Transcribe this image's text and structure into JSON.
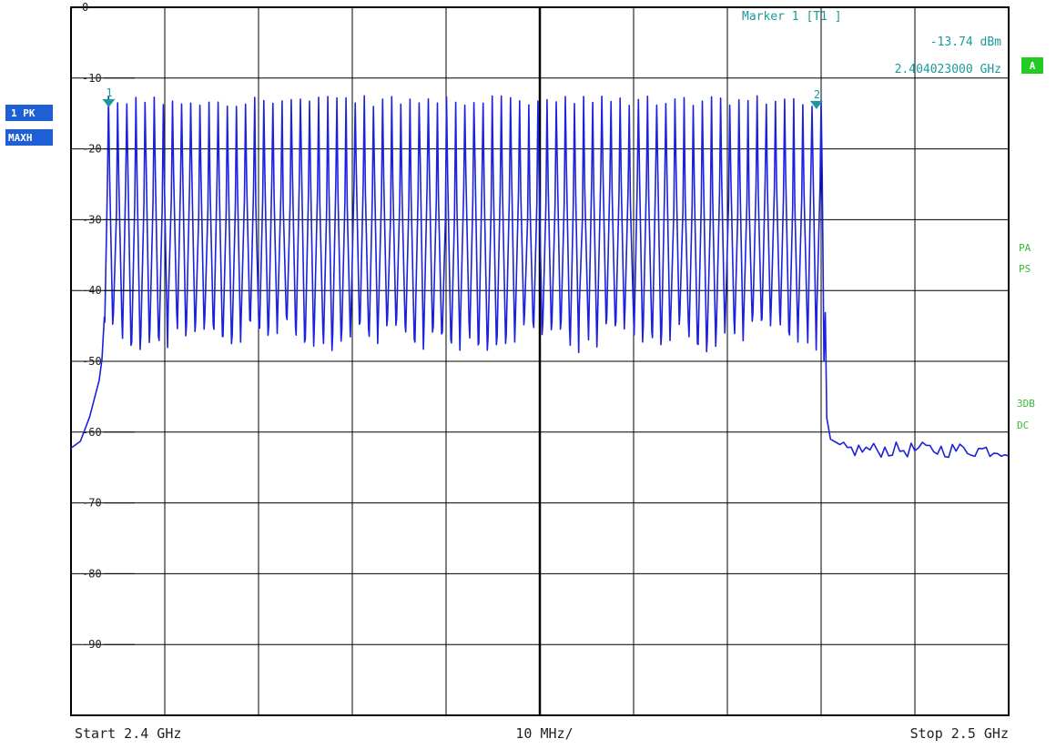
{
  "chart_data": {
    "type": "line",
    "title": "",
    "xlabel": "",
    "ylabel": "",
    "xlim": [
      2.4,
      2.5
    ],
    "ylim": [
      -100,
      0
    ],
    "x_unit": "GHz",
    "y_unit": "dBm",
    "grid": true,
    "y_ticks": [
      "0",
      "-10",
      "-20",
      "-30",
      "-40",
      "-50",
      "-60",
      "-70",
      "-80",
      "-90"
    ],
    "channels": {
      "count": 79,
      "first_center_ghz": 2.402,
      "spacing_ghz": 0.001,
      "peak_dbm": -13.7,
      "trough_dbm": -45
    },
    "noise_floor_dbm": -62.5,
    "series": [
      {
        "points": [
          [
            2.4,
            -62.5
          ],
          [
            2.401,
            -61
          ],
          [
            2.402,
            -58
          ],
          [
            2.4025,
            -56
          ],
          [
            2.403,
            -53
          ],
          [
            2.4033,
            -50
          ],
          [
            2.4036,
            -44
          ],
          [
            2.404,
            -13.7
          ],
          [
            2.4795,
            -13.8
          ],
          [
            2.48,
            -35
          ],
          [
            2.4803,
            -50
          ],
          [
            2.4806,
            -58
          ],
          [
            2.481,
            -61
          ],
          [
            2.482,
            -62.5
          ],
          [
            2.5,
            -62.5
          ]
        ]
      }
    ],
    "markers": [
      {
        "label": "1",
        "x": 2.404023,
        "y": -13.74
      },
      {
        "label": "2",
        "x": 2.4795,
        "y": -14.0
      }
    ]
  },
  "marker_readout": {
    "title": "Marker 1 [T1 ]",
    "level": "-13.74 dBm",
    "freq": "2.404023000 GHz"
  },
  "left_badges": [
    "1 PK",
    "MAXH"
  ],
  "right_badge": "A",
  "side_labels": [
    "PA",
    "PS",
    "3DB",
    "DC"
  ],
  "bottom": {
    "start": "Start 2.4 GHz",
    "div": "10 MHz/",
    "stop": "Stop 2.5 GHz"
  },
  "colors": {
    "trace": "#1a22dd",
    "grid": "#000000",
    "marker": "#1a9a9a",
    "badge_bg": "#1f5fd6",
    "badge_fg": "#ffffff",
    "green": "#22cc22",
    "green_text": "#33bb33",
    "axis_text": "#222222"
  }
}
